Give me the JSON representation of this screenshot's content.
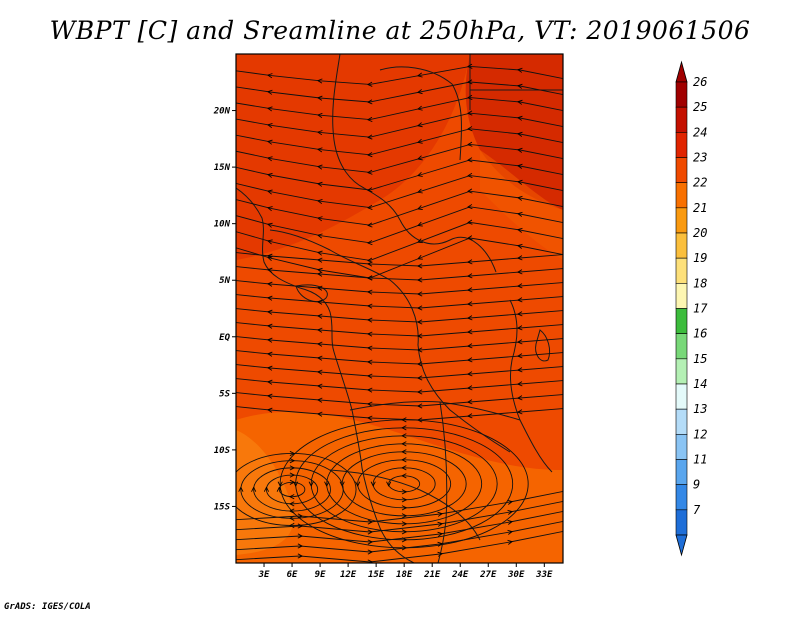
{
  "title": "WBPT [C] and Sreamline at 250hPa, VT: 2019061506",
  "credit": "GrADS: IGES/COLA",
  "map": {
    "lon_range": [
      0,
      35
    ],
    "lat_range": [
      -20,
      25
    ],
    "lat_ticks": [
      {
        "value": 20,
        "label": "20N"
      },
      {
        "value": 15,
        "label": "15N"
      },
      {
        "value": 10,
        "label": "10N"
      },
      {
        "value": 5,
        "label": "5N"
      },
      {
        "value": 0,
        "label": "EQ"
      },
      {
        "value": -5,
        "label": "5S"
      },
      {
        "value": -10,
        "label": "10S"
      },
      {
        "value": -15,
        "label": "15S"
      }
    ],
    "lon_ticks": [
      {
        "value": 3,
        "label": "3E"
      },
      {
        "value": 6,
        "label": "6E"
      },
      {
        "value": 9,
        "label": "9E"
      },
      {
        "value": 12,
        "label": "12E"
      },
      {
        "value": 15,
        "label": "15E"
      },
      {
        "value": 18,
        "label": "18E"
      },
      {
        "value": 21,
        "label": "21E"
      },
      {
        "value": 24,
        "label": "24E"
      },
      {
        "value": 27,
        "label": "27E"
      },
      {
        "value": 30,
        "label": "30E"
      },
      {
        "value": 33,
        "label": "33E"
      }
    ],
    "dominant_field": "23-25 C over most of the domain, slightly cooler (22-23 C) toward the south"
  },
  "colorbar": {
    "levels": [
      {
        "label": "26",
        "color": "#a00000"
      },
      {
        "label": "25",
        "color": "#c41000"
      },
      {
        "label": "24",
        "color": "#e02400"
      },
      {
        "label": "23",
        "color": "#f04a00"
      },
      {
        "label": "22",
        "color": "#f87000"
      },
      {
        "label": "21",
        "color": "#fa9a10"
      },
      {
        "label": "20",
        "color": "#fbbf3c"
      },
      {
        "label": "19",
        "color": "#fde07a"
      },
      {
        "label": "18",
        "color": "#fdf6b2"
      },
      {
        "label": "17",
        "color": "#3cbc3c"
      },
      {
        "label": "16",
        "color": "#78d878"
      },
      {
        "label": "15",
        "color": "#b4f0b4"
      },
      {
        "label": "14",
        "color": "#e4fafa"
      },
      {
        "label": "13",
        "color": "#b4dcf8"
      },
      {
        "label": "12",
        "color": "#8ac4f4"
      },
      {
        "label": "11",
        "color": "#5aa6ee"
      },
      {
        "label": "9",
        "color": "#3488e6"
      },
      {
        "label": "7",
        "color": "#1e6ed8"
      }
    ]
  }
}
